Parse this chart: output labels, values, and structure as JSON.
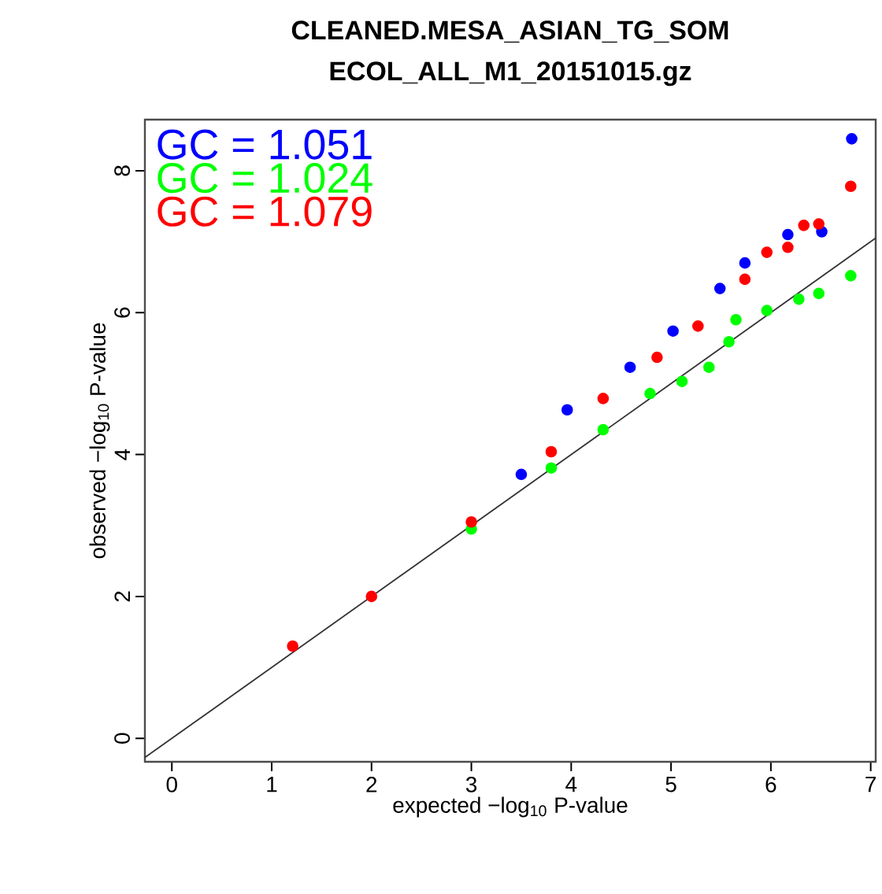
{
  "chart_data": {
    "type": "scatter",
    "title": "CLEANED.MESA_ASIAN_TG_SOM",
    "subtitle": "ECOL_ALL_M1_20151015.gz",
    "xlabel": "expected −log$_{10}$ P-value",
    "ylabel": "observed −log$_{10}$ P-value",
    "xlim": [
      -0.27,
      7.05
    ],
    "ylim": [
      -0.33,
      8.72
    ],
    "xticks": [
      0,
      1,
      2,
      3,
      4,
      5,
      6,
      7
    ],
    "yticks": [
      0,
      2,
      4,
      6,
      8
    ],
    "grid": false,
    "legend": "top left",
    "series": [
      {
        "type": "line",
        "color": "#333333",
        "x": [
          -0.27,
          7.05
        ],
        "values": [
          -0.27,
          7.05
        ]
      },
      {
        "name": "GC =  1.051",
        "color": "#0000ff",
        "marker": "circle",
        "x": [
          3.5,
          3.96,
          4.59,
          5.02,
          5.49,
          5.74,
          6.17,
          6.51,
          6.81
        ],
        "values": [
          3.72,
          4.63,
          5.23,
          5.74,
          6.34,
          6.7,
          7.1,
          7.14,
          8.45
        ]
      },
      {
        "name": "GC =  1.024",
        "color": "#00ff00",
        "marker": "circle",
        "x": [
          3.0,
          3.8,
          4.32,
          4.79,
          5.11,
          5.38,
          5.58,
          5.65,
          5.96,
          6.28,
          6.48,
          6.8
        ],
        "values": [
          2.95,
          3.81,
          4.35,
          4.86,
          5.03,
          5.23,
          5.59,
          5.9,
          6.03,
          6.19,
          6.27,
          6.52
        ]
      },
      {
        "name": "GC =  1.079",
        "color": "#ff0000",
        "marker": "circle",
        "x": [
          1.21,
          2.0,
          3.0,
          3.8,
          4.32,
          4.86,
          5.27,
          5.74,
          5.96,
          6.17,
          6.33,
          6.48,
          6.8
        ],
        "values": [
          1.3,
          2.0,
          3.05,
          4.04,
          4.79,
          5.37,
          5.81,
          6.47,
          6.85,
          6.92,
          7.23,
          7.25,
          7.78
        ]
      }
    ]
  }
}
